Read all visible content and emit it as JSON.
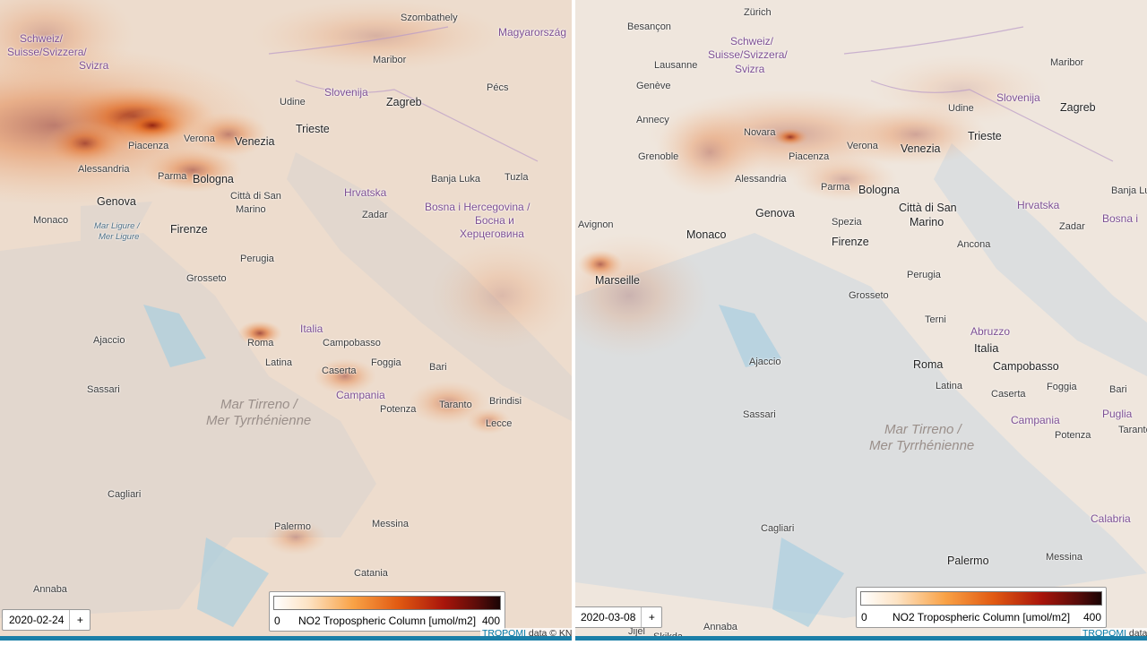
{
  "panels": [
    {
      "date": "2020-02-24",
      "button": "+",
      "legend": {
        "min": 0,
        "max": 400,
        "label": "NO2 Tropospheric Column [umol/m2]"
      },
      "attribution": {
        "source": "TROPOMI",
        "text": "data © KN"
      },
      "places": [
        "Szombathely",
        "Schweiz/",
        "Suisse/Svizzera/",
        "Svizra",
        "Magyarország",
        "Maribor",
        "Slovenija",
        "Pécs",
        "Zagreb",
        "Udine",
        "Venezia",
        "Trieste",
        "Verona",
        "Piacenza",
        "Alessandria",
        "Parma",
        "Bologna",
        "Genova",
        "Monaco",
        "Firenze",
        "Città di San",
        "Marino",
        "Mar Ligure /",
        "Mer Ligure",
        "Hrvatska",
        "Banja Luka",
        "Tuzla",
        "Zadar",
        "Bosna i Hercegovina /",
        "Босна и",
        "Херцеговина",
        "Grosseto",
        "Perugia",
        "Italia",
        "Roma",
        "Latina",
        "Campobasso",
        "Caserta",
        "Foggia",
        "Bari",
        "Campania",
        "Potenza",
        "Taranto",
        "Lecce",
        "Brindisi",
        "Ajaccio",
        "Sassari",
        "Mar Tirreno /",
        "Mer Tyrrhénienne",
        "Cagliari",
        "Palermo",
        "Messina",
        "Catania",
        "Annaba"
      ]
    },
    {
      "date": "2020-03-08",
      "button": "+",
      "legend": {
        "min": 0,
        "max": 400,
        "label": "NO2 Tropospheric Column [umol/m2]"
      },
      "attribution": {
        "source": "TROPOMI",
        "text": "data"
      },
      "places": [
        "Besançon",
        "Zürich",
        "Schweiz/",
        "Suisse/Svizzera/",
        "Svizra",
        "Lausanne",
        "Genève",
        "Annecy",
        "Grenoble",
        "Novara",
        "Piacenza",
        "Verona",
        "Venezia",
        "Udine",
        "Trieste",
        "Slovenija",
        "Zagreb",
        "Maribor",
        "Alessandria",
        "Parma",
        "Bologna",
        "Genova",
        "Spezia",
        "Monaco",
        "Firenze",
        "Città di San",
        "Marino",
        "Hrvatska",
        "Zadar",
        "Banja Luka",
        "Bosna i",
        "Avignon",
        "Marseille",
        "Ancona",
        "Perugia",
        "Grosseto",
        "Terni",
        "Abruzzo",
        "Italia",
        "Roma",
        "Latina",
        "Campobasso",
        "Caserta",
        "Foggia",
        "Bari",
        "Puglia",
        "Campania",
        "Potenza",
        "Taranto",
        "Ajaccio",
        "Sassari",
        "Mar Tirreno /",
        "Mer Tyrrhénienne",
        "Cagliari",
        "Calabria",
        "Palermo",
        "Messina",
        "Annaba",
        "Skikda",
        "Jijel"
      ]
    }
  ]
}
